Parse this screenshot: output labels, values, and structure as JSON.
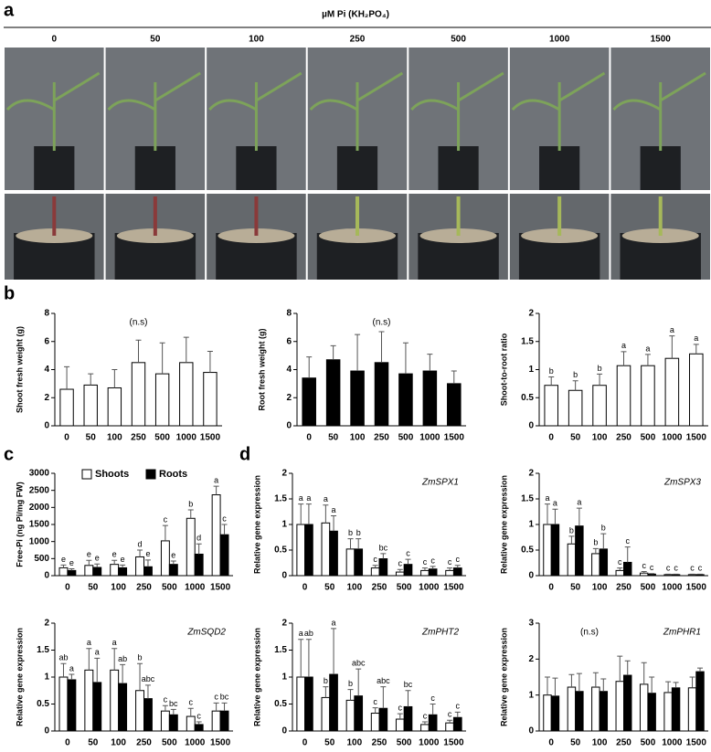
{
  "panels": [
    "a",
    "b",
    "c",
    "d"
  ],
  "header": "µM Pi (KH₂PO₄)",
  "photo_columns": [
    "0",
    "50",
    "100",
    "250",
    "500",
    "1000",
    "1500"
  ],
  "chart_data": [
    {
      "type": "bar",
      "y_label": "Shoot fresh weight (g)",
      "annotation": "(n.s)",
      "categories": [
        "0",
        "50",
        "100",
        "250",
        "500",
        "1000",
        "1500"
      ],
      "ylim": [
        0,
        8
      ],
      "yticks": [
        0,
        2,
        4,
        6,
        8
      ],
      "series": [
        {
          "name": "Shoots",
          "color": "#ffffff",
          "values": [
            2.6,
            2.9,
            2.7,
            4.5,
            3.7,
            4.5,
            3.8
          ],
          "errors": [
            1.6,
            0.8,
            1.3,
            1.6,
            2.2,
            1.8,
            1.5
          ]
        }
      ]
    },
    {
      "type": "bar",
      "y_label": "Root fresh weight (g)",
      "annotation": "(n.s)",
      "categories": [
        "0",
        "50",
        "100",
        "250",
        "500",
        "1000",
        "1500"
      ],
      "ylim": [
        0,
        8
      ],
      "yticks": [
        0,
        2,
        4,
        6,
        8
      ],
      "series": [
        {
          "name": "Roots",
          "color": "#000000",
          "values": [
            3.4,
            4.7,
            3.9,
            4.5,
            3.7,
            3.9,
            3.0
          ],
          "errors": [
            1.5,
            1.0,
            2.6,
            2.2,
            2.2,
            1.2,
            0.9
          ]
        }
      ]
    },
    {
      "type": "bar",
      "y_label": "Shoot-to-root ratio",
      "categories": [
        "0",
        "50",
        "100",
        "250",
        "500",
        "1000",
        "1500"
      ],
      "ylim": [
        0,
        2
      ],
      "yticks": [
        0,
        0.5,
        1,
        1.5,
        2
      ],
      "series": [
        {
          "name": "Ratio",
          "color": "#ffffff",
          "values": [
            0.72,
            0.63,
            0.72,
            1.07,
            1.07,
            1.2,
            1.28
          ],
          "errors": [
            0.15,
            0.17,
            0.2,
            0.25,
            0.2,
            0.4,
            0.17
          ],
          "labels": [
            "b",
            "b",
            "b",
            "a",
            "a",
            "a",
            "a"
          ]
        }
      ]
    },
    {
      "type": "bar",
      "y_label": "Free-Pi (ng Pi/mg FW)",
      "legend": true,
      "categories": [
        "0",
        "50",
        "100",
        "250",
        "500",
        "1000",
        "1500"
      ],
      "ylim": [
        0,
        3000
      ],
      "yticks": [
        0,
        500,
        1000,
        1500,
        2000,
        2500,
        3000
      ],
      "series": [
        {
          "name": "Shoots",
          "color": "#ffffff",
          "values": [
            230,
            300,
            330,
            550,
            1020,
            1680,
            2370
          ],
          "errors": [
            80,
            150,
            120,
            200,
            450,
            250,
            250
          ],
          "labels": [
            "e",
            "e",
            "e",
            "d",
            "c",
            "b",
            "a"
          ]
        },
        {
          "name": "Roots",
          "color": "#000000",
          "values": [
            150,
            240,
            230,
            260,
            330,
            630,
            1200
          ],
          "errors": [
            50,
            100,
            80,
            200,
            100,
            300,
            300
          ],
          "labels": [
            "e",
            "e",
            "e",
            "e",
            "e",
            "d",
            "c"
          ]
        }
      ]
    },
    {
      "type": "bar",
      "y_label": "Relative gene expression",
      "gene": "ZmSPX1",
      "categories": [
        "0",
        "50",
        "100",
        "250",
        "500",
        "1000",
        "1500"
      ],
      "ylim": [
        0,
        2
      ],
      "yticks": [
        0,
        0.5,
        1,
        1.5,
        2
      ],
      "series": [
        {
          "name": "Shoots",
          "color": "#ffffff",
          "values": [
            1.0,
            1.03,
            0.52,
            0.15,
            0.07,
            0.1,
            0.1
          ],
          "errors": [
            0.4,
            0.35,
            0.2,
            0.05,
            0.05,
            0.05,
            0.05
          ],
          "labels": [
            "a",
            "a",
            "b",
            "c",
            "c",
            "c",
            "c"
          ]
        },
        {
          "name": "Roots",
          "color": "#000000",
          "values": [
            1.0,
            0.87,
            0.52,
            0.33,
            0.22,
            0.13,
            0.15
          ],
          "errors": [
            0.4,
            0.3,
            0.2,
            0.1,
            0.1,
            0.05,
            0.05
          ],
          "labels": [
            "a",
            "a",
            "b",
            "bc",
            "c",
            "c",
            "c"
          ]
        }
      ]
    },
    {
      "type": "bar",
      "y_label": "Relative gene expression",
      "gene": "ZmSPX3",
      "categories": [
        "0",
        "50",
        "100",
        "250",
        "500",
        "1000",
        "1500"
      ],
      "ylim": [
        0,
        2
      ],
      "yticks": [
        0,
        0.5,
        1,
        1.5,
        2
      ],
      "series": [
        {
          "name": "Shoots",
          "color": "#ffffff",
          "values": [
            1.0,
            0.62,
            0.43,
            0.1,
            0.05,
            0.02,
            0.02
          ],
          "errors": [
            0.4,
            0.15,
            0.1,
            0.05,
            0.03,
            0.01,
            0.01
          ],
          "labels": [
            "a",
            "b",
            "b",
            "c",
            "c",
            "c",
            "c"
          ]
        },
        {
          "name": "Roots",
          "color": "#000000",
          "values": [
            1.0,
            0.97,
            0.52,
            0.26,
            0.03,
            0.02,
            0.02
          ],
          "errors": [
            0.3,
            0.35,
            0.3,
            0.3,
            0.01,
            0.01,
            0.01
          ],
          "labels": [
            "a",
            "a",
            "b",
            "c",
            "c",
            "c",
            "c"
          ]
        }
      ]
    },
    {
      "type": "bar",
      "y_label": "Relative gene expression",
      "gene": "ZmSQD2",
      "categories": [
        "0",
        "50",
        "100",
        "250",
        "500",
        "1000",
        "1500"
      ],
      "ylim": [
        0,
        2
      ],
      "yticks": [
        0,
        0.5,
        1,
        1.5,
        2
      ],
      "series": [
        {
          "name": "Shoots",
          "color": "#ffffff",
          "values": [
            1.0,
            1.13,
            1.13,
            0.75,
            0.37,
            0.27,
            0.37
          ],
          "errors": [
            0.25,
            0.4,
            0.4,
            0.5,
            0.1,
            0.15,
            0.15
          ],
          "labels": [
            "ab",
            "a",
            "a",
            "b",
            "c",
            "c",
            "c"
          ]
        },
        {
          "name": "Roots",
          "color": "#000000",
          "values": [
            0.95,
            0.9,
            0.88,
            0.6,
            0.3,
            0.12,
            0.37
          ],
          "errors": [
            0.1,
            0.45,
            0.35,
            0.25,
            0.1,
            0.05,
            0.15
          ],
          "labels": [
            "a",
            "a",
            "ab",
            "abc",
            "bc",
            "c",
            "bc"
          ]
        }
      ]
    },
    {
      "type": "bar",
      "y_label": "Relative gene expression",
      "gene": "ZmPHT2",
      "categories": [
        "0",
        "50",
        "100",
        "250",
        "500",
        "1000",
        "1500"
      ],
      "ylim": [
        0,
        2
      ],
      "yticks": [
        0,
        0.5,
        1,
        1.5,
        2
      ],
      "series": [
        {
          "name": "Shoots",
          "color": "#ffffff",
          "values": [
            1.0,
            0.62,
            0.57,
            0.33,
            0.22,
            0.12,
            0.15
          ],
          "errors": [
            0.7,
            0.2,
            0.2,
            0.1,
            0.1,
            0.05,
            0.05
          ],
          "labels": [
            "a",
            "b",
            "b",
            "c",
            "c",
            "c",
            "c"
          ]
        },
        {
          "name": "Roots",
          "color": "#000000",
          "values": [
            1.0,
            1.05,
            0.65,
            0.42,
            0.45,
            0.3,
            0.25
          ],
          "errors": [
            0.7,
            0.85,
            0.5,
            0.4,
            0.3,
            0.2,
            0.1
          ],
          "labels": [
            "ab",
            "a",
            "abc",
            "abc",
            "bc",
            "c",
            "c"
          ]
        }
      ]
    },
    {
      "type": "bar",
      "y_label": "Relative gene expression",
      "gene": "ZmPHR1",
      "annotation": "(n.s)",
      "categories": [
        "0",
        "50",
        "100",
        "250",
        "500",
        "1000",
        "1500"
      ],
      "ylim": [
        0,
        3
      ],
      "yticks": [
        0,
        1,
        2,
        3
      ],
      "series": [
        {
          "name": "Shoots",
          "color": "#ffffff",
          "values": [
            1.0,
            1.22,
            1.22,
            1.38,
            1.3,
            1.07,
            1.2
          ],
          "errors": [
            0.5,
            0.35,
            0.4,
            0.7,
            0.6,
            0.3,
            0.3
          ]
        },
        {
          "name": "Roots",
          "color": "#000000",
          "values": [
            0.97,
            1.1,
            1.1,
            1.55,
            1.05,
            1.2,
            1.65
          ],
          "errors": [
            0.5,
            0.5,
            0.35,
            0.4,
            0.45,
            0.15,
            0.1
          ]
        }
      ]
    }
  ]
}
